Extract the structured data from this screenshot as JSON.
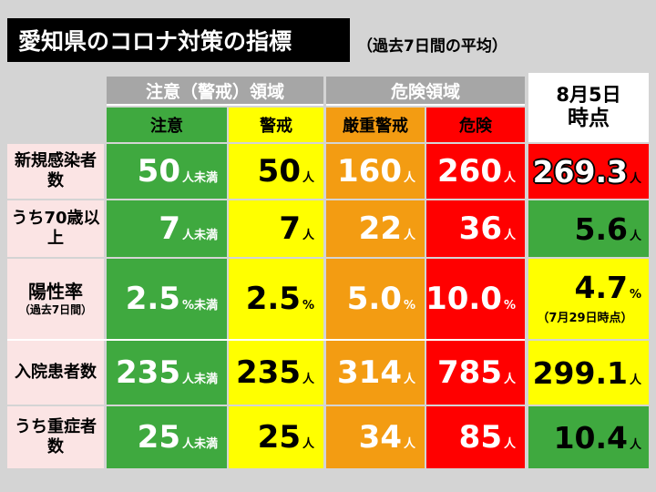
{
  "title": "愛知県のコロナ対策の指標",
  "subtitle": "（過去7日間の平均）",
  "groups": {
    "caution": "注意（警戒）領域",
    "danger": "危険領域"
  },
  "columns": [
    "注意",
    "警戒",
    "厳重警戒",
    "危険"
  ],
  "current_header": {
    "line1": "8月5日",
    "line2": "時点"
  },
  "colors": {
    "green": "#3fa93f",
    "yellow": "#ffff00",
    "orange": "#f39c12",
    "red": "#ff0000",
    "header_gray": "#a6a6a6",
    "label_pink": "#fbe4e4"
  },
  "rows": [
    {
      "label": "新規感染者数",
      "values": [
        {
          "num": "50",
          "unit": "人未満"
        },
        {
          "num": "50",
          "unit": "人"
        },
        {
          "num": "160",
          "unit": "人"
        },
        {
          "num": "260",
          "unit": "人"
        }
      ],
      "current": {
        "num": "269.3",
        "unit": "人",
        "level": "danger"
      }
    },
    {
      "label": "うち70歳以上",
      "values": [
        {
          "num": "7",
          "unit": "人未満"
        },
        {
          "num": "7",
          "unit": "人"
        },
        {
          "num": "22",
          "unit": "人"
        },
        {
          "num": "36",
          "unit": "人"
        }
      ],
      "current": {
        "num": "5.6",
        "unit": "人",
        "level": "caution"
      }
    },
    {
      "label": "陽性率",
      "label_sub": "（過去7日間）",
      "values": [
        {
          "num": "2.5",
          "unit": "%未満"
        },
        {
          "num": "2.5",
          "unit": "%"
        },
        {
          "num": "5.0",
          "unit": "%"
        },
        {
          "num": "10.0",
          "unit": "%"
        }
      ],
      "current": {
        "num": "4.7",
        "unit": "%",
        "note": "（7月29日時点）",
        "level": "warning"
      }
    },
    {
      "label": "入院患者数",
      "values": [
        {
          "num": "235",
          "unit": "人未満"
        },
        {
          "num": "235",
          "unit": "人"
        },
        {
          "num": "314",
          "unit": "人"
        },
        {
          "num": "785",
          "unit": "人"
        }
      ],
      "current": {
        "num": "299.1",
        "unit": "人",
        "level": "warning"
      }
    },
    {
      "label": "うち重症者数",
      "values": [
        {
          "num": "25",
          "unit": "人未満"
        },
        {
          "num": "25",
          "unit": "人"
        },
        {
          "num": "34",
          "unit": "人"
        },
        {
          "num": "85",
          "unit": "人"
        }
      ],
      "current": {
        "num": "10.4",
        "unit": "人",
        "level": "caution"
      }
    }
  ]
}
